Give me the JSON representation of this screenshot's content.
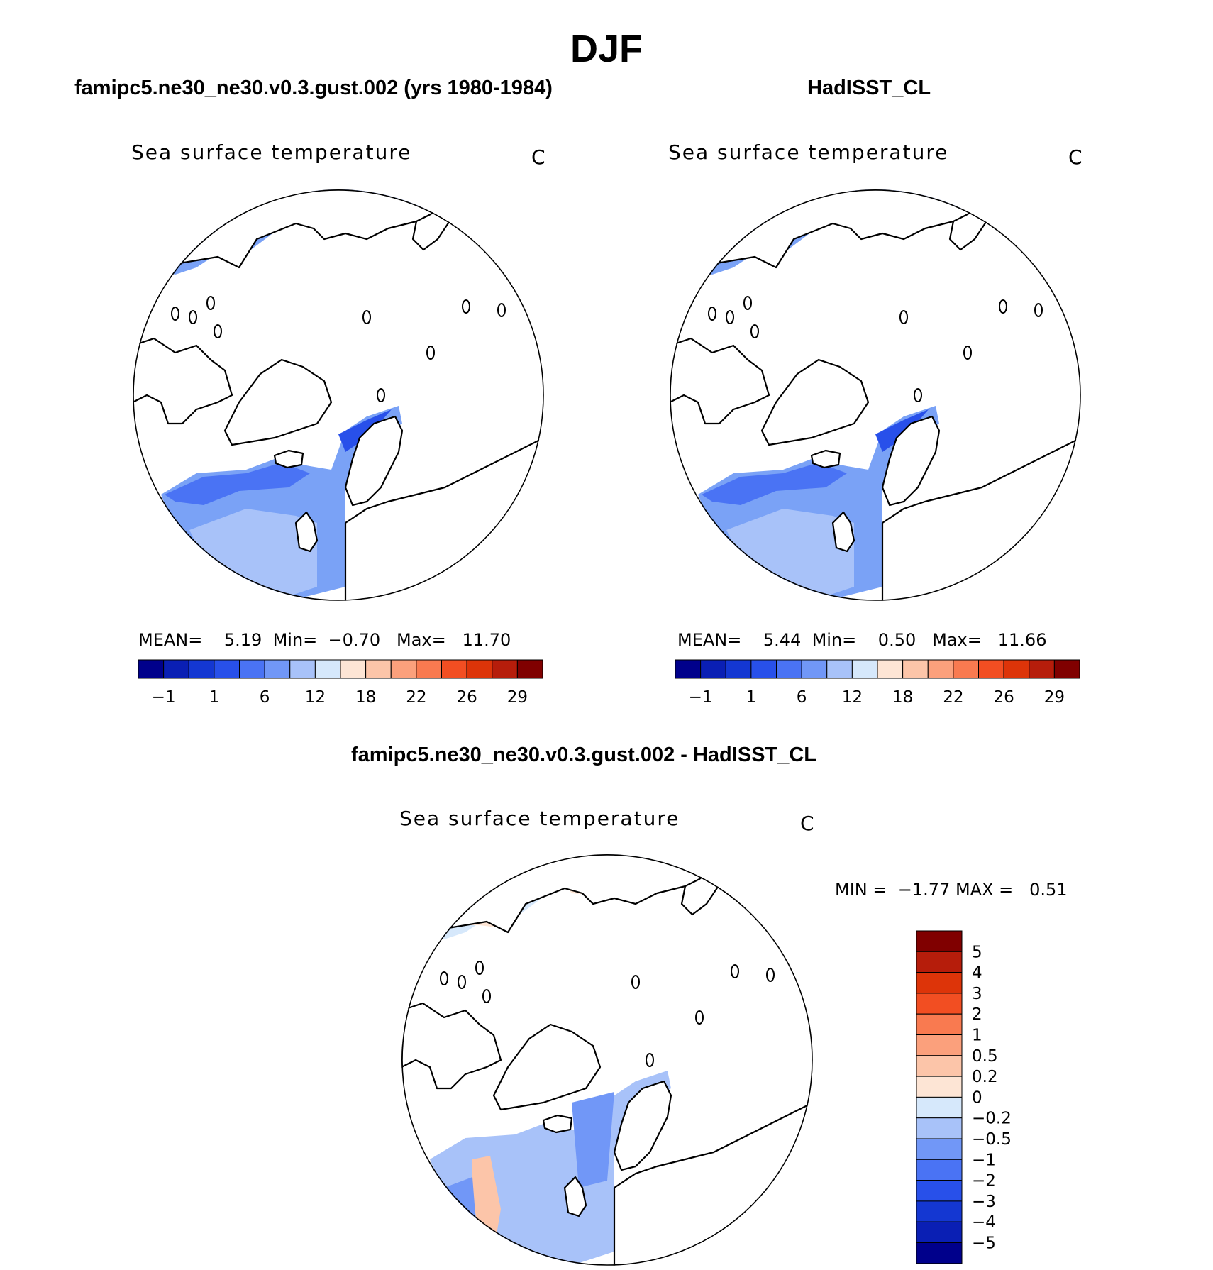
{
  "figure": {
    "title": "DJF",
    "panels": [
      {
        "id": "model",
        "title": "famipc5.ne30_ne30.v0.3.gust.002 (yrs 1980-1984)",
        "variable": "Sea surface temperature",
        "units": "C",
        "stats": {
          "mean_label": "MEAN=",
          "mean": "5.19",
          "min_label": "Min=",
          "min": "−0.70",
          "max_label": "Max=",
          "max": "11.70"
        }
      },
      {
        "id": "obs",
        "title": "HadISST_CL",
        "variable": "Sea surface temperature",
        "units": "C",
        "stats": {
          "mean_label": "MEAN=",
          "mean": "5.44",
          "min_label": "Min=",
          "min": "0.50",
          "max_label": "Max=",
          "max": "11.66"
        }
      },
      {
        "id": "diff",
        "title": "famipc5.ne30_ne30.v0.3.gust.002 - HadISST_CL",
        "variable": "Sea surface temperature",
        "units": "C",
        "stats": {
          "min_label": "MIN =",
          "min": "−1.77",
          "max_label": "MAX =",
          "max": "0.51"
        }
      }
    ],
    "colorbar_top": {
      "tick_labels": [
        "−1",
        "1",
        "6",
        "12",
        "18",
        "22",
        "26",
        "29"
      ],
      "colors": [
        "#00008b",
        "#0a1fb4",
        "#1437d2",
        "#2850ea",
        "#4a73f4",
        "#7197f7",
        "#a8c2f9",
        "#d6e8fb",
        "#fde5d5",
        "#fcc5a9",
        "#fba07c",
        "#f97a50",
        "#f24e22",
        "#dd3409",
        "#b61d0b",
        "#800000"
      ]
    },
    "colorbar_diff": {
      "tick_labels": [
        "5",
        "4",
        "3",
        "2",
        "1",
        "0.5",
        "0.2",
        "0",
        "−0.2",
        "−0.5",
        "−1",
        "−2",
        "−3",
        "−4",
        "−5"
      ],
      "colors": [
        "#800000",
        "#b61d0b",
        "#dd3409",
        "#f24e22",
        "#f97a50",
        "#fba07c",
        "#fcc5a9",
        "#fde5d5",
        "#d6e8fb",
        "#a8c2f9",
        "#7197f7",
        "#4a73f4",
        "#2850ea",
        "#1437d2",
        "#0a1fb4",
        "#00008b"
      ]
    },
    "field_colors": {
      "model": [
        "#7aa2f6",
        "#4a73f4",
        "#2850ea",
        "#a8c2f9"
      ],
      "obs": [
        "#7aa2f6",
        "#4a73f4",
        "#2850ea",
        "#a8c2f9"
      ],
      "diff": [
        "#d6e8fb",
        "#fde5d5",
        "#fcc5a9",
        "#a8c2f9",
        "#7197f7"
      ]
    }
  }
}
